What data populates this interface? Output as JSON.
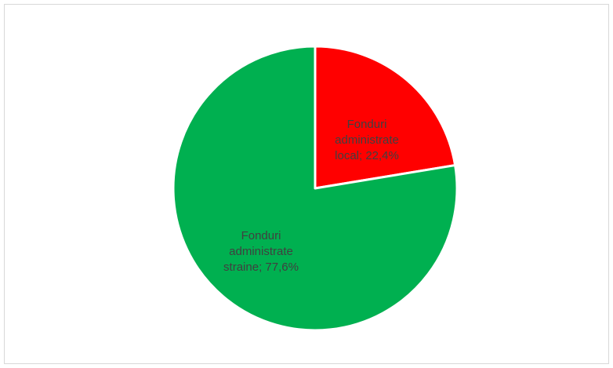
{
  "chart_data": {
    "type": "pie",
    "title": "",
    "slices": [
      {
        "name": "Fonduri administrate local",
        "value": 22.4,
        "label_lines": [
          "Fonduri",
          "administrate",
          "local; 22,4%"
        ],
        "color": "#ff0000"
      },
      {
        "name": "Fonduri administrate straine",
        "value": 77.6,
        "label_lines": [
          "Fonduri",
          "administrate",
          "straine; 77,6%"
        ],
        "color": "#00b050"
      }
    ],
    "start_angle_deg": 0,
    "direction": "clockwise",
    "legend": "none",
    "data_labels": "inside"
  }
}
